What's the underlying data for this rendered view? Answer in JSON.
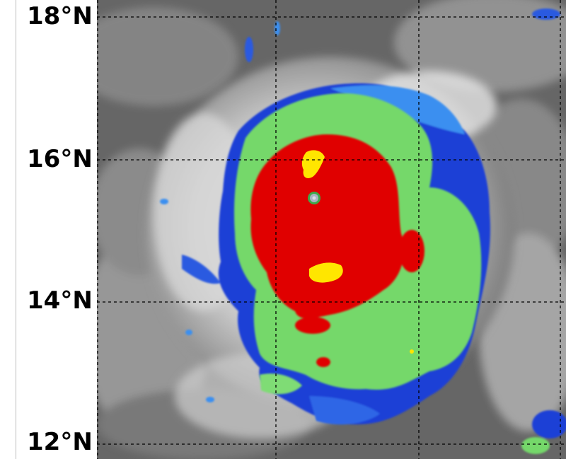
{
  "latitude_labels": {
    "lat_18": "18°N",
    "lat_16": "16°N",
    "lat_14": "14°N",
    "lat_12": "12°N"
  },
  "imagery": {
    "subject": "infrared satellite imagery of a tropical cyclone",
    "palette": {
      "cloud_gray_dark": "#5e5e5e",
      "cloud_gray_light": "#e8e8e8",
      "cold_blue": "#1f3fd6",
      "cold_blue_light": "#3b8ff0",
      "green": "#74d86a",
      "red": "#e00000",
      "yellow": "#ffe600",
      "eye_gray": "#a9b4c4"
    }
  }
}
